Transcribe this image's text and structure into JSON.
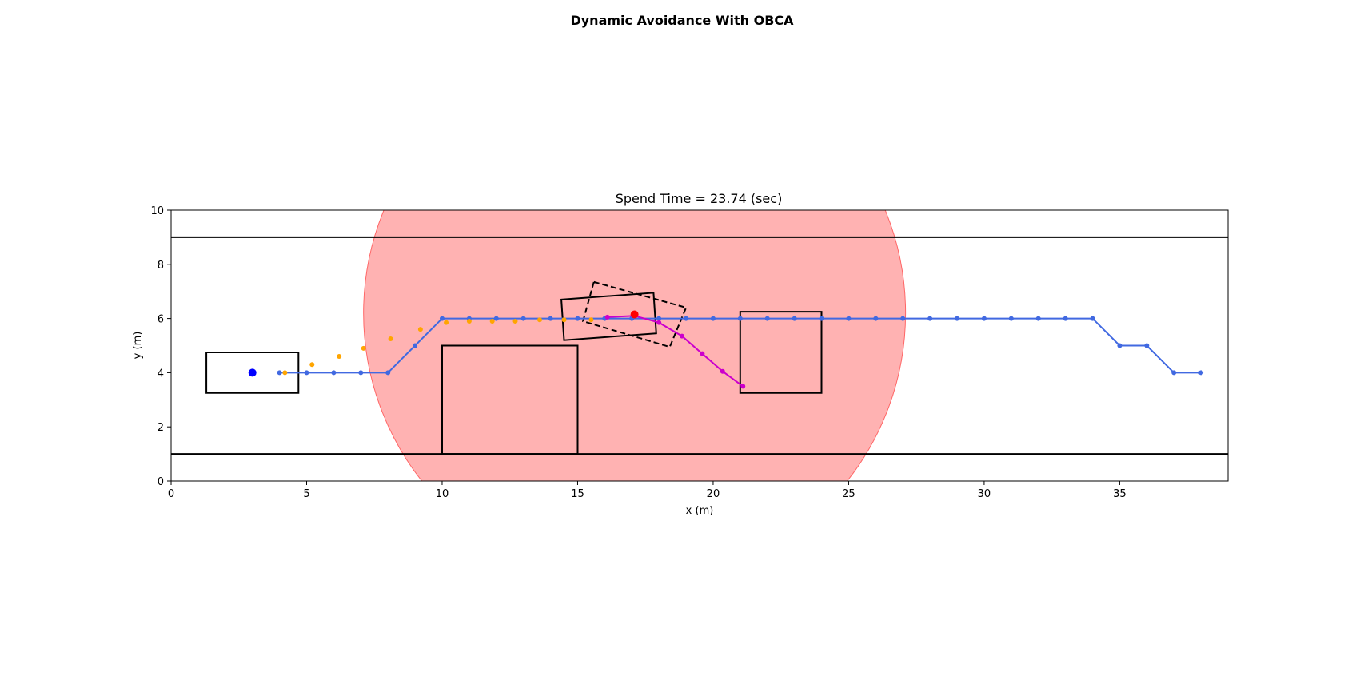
{
  "figure": {
    "suptitle": "Dynamic Avoidance With OBCA",
    "axes_title": "Spend Time = 23.74 (sec)"
  },
  "chart_data": {
    "type": "scatter",
    "xlabel": "x (m)",
    "ylabel": "y (m)",
    "xlim": [
      0,
      39
    ],
    "ylim": [
      0,
      10
    ],
    "xticks": [
      0,
      5,
      10,
      15,
      20,
      25,
      30,
      35
    ],
    "yticks": [
      0,
      2,
      4,
      6,
      8,
      10
    ],
    "grid": false,
    "lane_boundaries": [
      9,
      1
    ],
    "danger_circle": {
      "center": [
        17.1,
        6.2
      ],
      "radius": 10,
      "color": "#ff6666"
    },
    "static_obstacles": [
      {
        "corners": [
          [
            1.3,
            3.25
          ],
          [
            4.7,
            3.25
          ],
          [
            4.7,
            4.75
          ],
          [
            1.3,
            4.75
          ]
        ]
      },
      {
        "corners": [
          [
            10,
            1
          ],
          [
            15,
            1
          ],
          [
            15,
            5
          ],
          [
            10,
            5
          ]
        ]
      },
      {
        "corners": [
          [
            21,
            3.25
          ],
          [
            24,
            3.25
          ],
          [
            24,
            6.25
          ],
          [
            21,
            6.25
          ]
        ]
      }
    ],
    "ego_vehicle": {
      "corners": [
        [
          14.4,
          6.7
        ],
        [
          17.8,
          6.95
        ],
        [
          17.9,
          5.45
        ],
        [
          14.5,
          5.2
        ]
      ],
      "style": "solid"
    },
    "predicted_vehicle": {
      "corners": [
        [
          15.6,
          7.35
        ],
        [
          19.0,
          6.4
        ],
        [
          18.4,
          4.95
        ],
        [
          15.2,
          5.9
        ]
      ],
      "style": "dashed"
    },
    "start_point": {
      "x": 3.0,
      "y": 4.0,
      "color": "#0000ff"
    },
    "current_point": {
      "x": 17.1,
      "y": 6.15,
      "color": "#ff0000"
    },
    "series": [
      {
        "role": "reference path",
        "color": "#4169e1",
        "x": [
          4,
          5,
          6,
          7,
          8,
          9,
          10,
          11,
          12,
          13,
          14,
          15,
          16,
          17,
          18,
          19,
          20,
          21,
          22,
          23,
          24,
          25,
          26,
          27,
          28,
          29,
          30,
          31,
          32,
          33,
          34,
          35,
          36,
          37,
          38
        ],
        "y": [
          4,
          4,
          4,
          4,
          4,
          5,
          6,
          6,
          6,
          6,
          6,
          6,
          6,
          6,
          6,
          6,
          6,
          6,
          6,
          6,
          6,
          6,
          6,
          6,
          6,
          6,
          6,
          6,
          6,
          6,
          6,
          5,
          5,
          4,
          4
        ]
      },
      {
        "role": "traveled trajectory",
        "color": "#ffa500",
        "x": [
          4.2,
          5.2,
          6.2,
          7.1,
          8.1,
          9.2,
          10.15,
          11.0,
          11.85,
          12.7,
          13.6,
          14.5,
          15.5
        ],
        "y": [
          4.0,
          4.3,
          4.6,
          4.9,
          5.25,
          5.6,
          5.85,
          5.9,
          5.9,
          5.9,
          5.95,
          5.95,
          5.95
        ]
      },
      {
        "role": "predicted trajectory",
        "color": "#cc00cc",
        "x": [
          16.1,
          17.1,
          18.0,
          18.85,
          19.6,
          20.35,
          21.1
        ],
        "y": [
          6.05,
          6.1,
          5.85,
          5.35,
          4.7,
          4.05,
          3.5
        ]
      }
    ]
  }
}
